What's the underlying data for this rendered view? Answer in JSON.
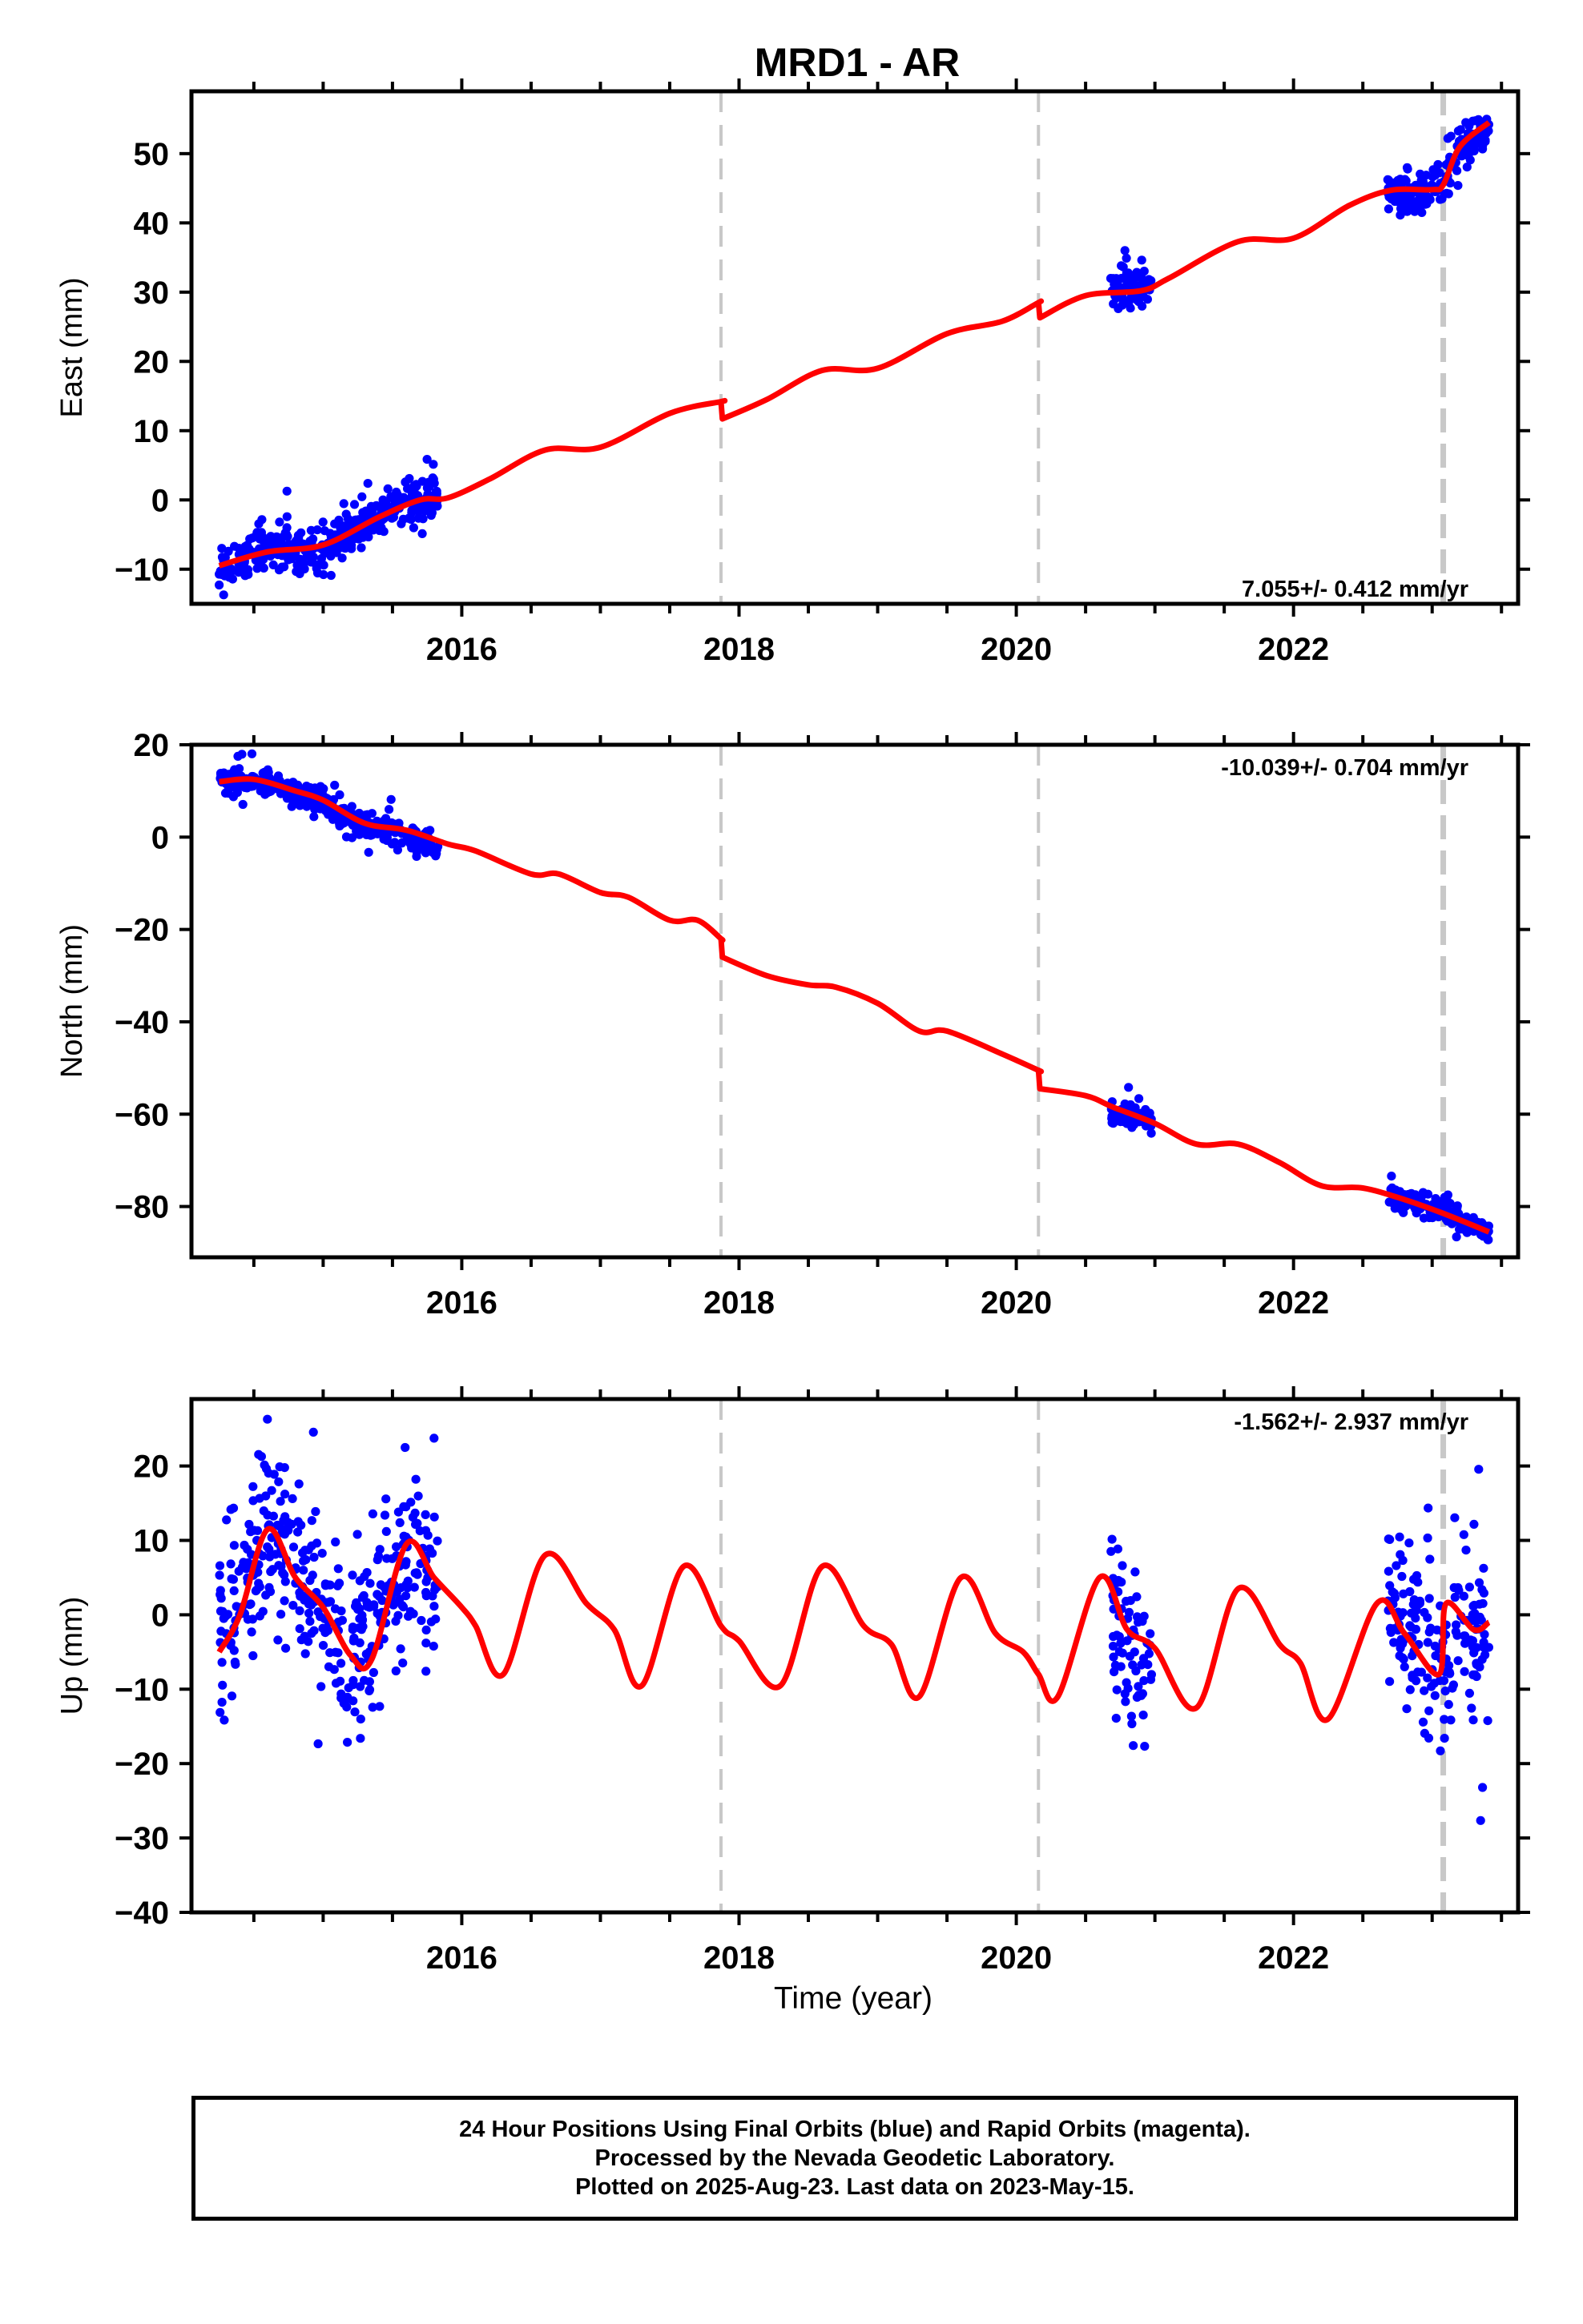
{
  "title": "MRD1 - AR",
  "x_tick_labels": [
    "2016",
    "2018",
    "2020",
    "2022"
  ],
  "xlabel": "Time (year)",
  "colors": {
    "data": "#0000ff",
    "model": "#ff0000",
    "breaks": "#c8c8c8",
    "frame": "#000000"
  },
  "footer": {
    "line1": "24 Hour Positions Using Final Orbits (blue) and Rapid Orbits (magenta).",
    "line2": "Processed by the Nevada Geodetic Laboratory.",
    "line3": "Plotted on 2025-Aug-23. Last data on 2023-May-15."
  },
  "chart_data": [
    {
      "type": "scatter",
      "component": "east",
      "ylabel": "East (mm)",
      "rate_label": "7.055+/- 0.412 mm/yr",
      "xlim": [
        2014.05,
        2023.62
      ],
      "ylim": [
        -15,
        59
      ],
      "yticks": [
        -10,
        0,
        10,
        20,
        30,
        40,
        50
      ],
      "xticks": [
        2016,
        2018,
        2020,
        2022
      ],
      "step_epochs": [
        2017.87,
        2020.16,
        2023.08
      ],
      "data_segments": [
        {
          "start": 2014.25,
          "end": 2015.83,
          "points": [
            [
              2014.25,
              -9.5
            ],
            [
              2014.4,
              -8.5
            ],
            [
              2014.6,
              -7.2
            ],
            [
              2014.8,
              -7.0
            ],
            [
              2015.0,
              -6.5
            ],
            [
              2015.2,
              -4.5
            ],
            [
              2015.4,
              -2.0
            ],
            [
              2015.6,
              0.5
            ],
            [
              2015.83,
              1.0
            ]
          ]
        },
        {
          "start": 2020.68,
          "end": 2020.98,
          "points": [
            [
              2020.68,
              30.0
            ],
            [
              2020.8,
              30.5
            ],
            [
              2020.98,
              31.5
            ]
          ]
        },
        {
          "start": 2022.68,
          "end": 2023.41,
          "points": [
            [
              2022.68,
              44.8
            ],
            [
              2022.9,
              44.2
            ],
            [
              2023.08,
              45.8
            ],
            [
              2023.2,
              50.5
            ],
            [
              2023.41,
              54.0
            ]
          ]
        }
      ],
      "model": [
        [
          2014.25,
          -9.5
        ],
        [
          2014.6,
          -7.5
        ],
        [
          2015.0,
          -6.5
        ],
        [
          2015.4,
          -2.5
        ],
        [
          2015.7,
          0.0
        ],
        [
          2015.9,
          0.3
        ],
        [
          2016.2,
          3.0
        ],
        [
          2016.6,
          7.2
        ],
        [
          2017.0,
          7.6
        ],
        [
          2017.5,
          12.5
        ],
        [
          2017.87,
          14.2
        ],
        [
          2017.88,
          11.7
        ],
        [
          2018.2,
          14.5
        ],
        [
          2018.6,
          18.7
        ],
        [
          2019.0,
          19.0
        ],
        [
          2019.5,
          24.0
        ],
        [
          2019.9,
          25.8
        ],
        [
          2020.16,
          28.5
        ],
        [
          2020.17,
          26.3
        ],
        [
          2020.5,
          29.5
        ],
        [
          2020.9,
          30.2
        ],
        [
          2021.1,
          32.0
        ],
        [
          2021.6,
          37.3
        ],
        [
          2022.0,
          37.8
        ],
        [
          2022.4,
          42.5
        ],
        [
          2022.7,
          44.7
        ],
        [
          2023.0,
          44.8
        ],
        [
          2023.08,
          45.5
        ],
        [
          2023.2,
          51.0
        ],
        [
          2023.41,
          54.5
        ]
      ]
    },
    {
      "type": "scatter",
      "component": "north",
      "ylabel": "North (mm)",
      "rate_label": "-10.039+/- 0.704 mm/yr",
      "xlim": [
        2014.05,
        2023.62
      ],
      "ylim": [
        -91,
        20
      ],
      "yticks": [
        -80,
        -60,
        -40,
        -20,
        0,
        20
      ],
      "xticks": [
        2016,
        2018,
        2020,
        2022
      ],
      "step_epochs": [
        2017.87,
        2020.16,
        2023.08
      ],
      "data_segments": [
        {
          "start": 2014.25,
          "end": 2015.83,
          "points": [
            [
              2014.25,
              12.5
            ],
            [
              2014.5,
              12.0
            ],
            [
              2014.8,
              9.5
            ],
            [
              2015.0,
              7.5
            ],
            [
              2015.2,
              3.5
            ],
            [
              2015.5,
              1.5
            ],
            [
              2015.83,
              -2.5
            ]
          ]
        },
        {
          "start": 2020.68,
          "end": 2020.98,
          "points": [
            [
              2020.68,
              -59.5
            ],
            [
              2020.8,
              -60.5
            ],
            [
              2020.98,
              -61.5
            ]
          ]
        },
        {
          "start": 2022.68,
          "end": 2023.41,
          "points": [
            [
              2022.68,
              -77.5
            ],
            [
              2022.9,
              -79.5
            ],
            [
              2023.08,
              -81.0
            ],
            [
              2023.25,
              -84.0
            ],
            [
              2023.41,
              -85.5
            ]
          ]
        }
      ],
      "model": [
        [
          2014.25,
          12.0
        ],
        [
          2014.5,
          12.5
        ],
        [
          2014.8,
          10.0
        ],
        [
          2015.0,
          8.0
        ],
        [
          2015.3,
          3.0
        ],
        [
          2015.6,
          1.5
        ],
        [
          2015.9,
          -1.5
        ],
        [
          2016.1,
          -3.0
        ],
        [
          2016.5,
          -8.0
        ],
        [
          2016.7,
          -8.0
        ],
        [
          2017.0,
          -12.0
        ],
        [
          2017.2,
          -13.0
        ],
        [
          2017.5,
          -18.0
        ],
        [
          2017.7,
          -18.0
        ],
        [
          2017.87,
          -22.0
        ],
        [
          2017.88,
          -26.0
        ],
        [
          2018.2,
          -30.0
        ],
        [
          2018.5,
          -32.0
        ],
        [
          2018.7,
          -32.5
        ],
        [
          2019.0,
          -36.0
        ],
        [
          2019.3,
          -42.0
        ],
        [
          2019.5,
          -42.0
        ],
        [
          2019.9,
          -47.0
        ],
        [
          2020.16,
          -50.5
        ],
        [
          2020.17,
          -54.5
        ],
        [
          2020.5,
          -56.0
        ],
        [
          2020.7,
          -58.5
        ],
        [
          2021.0,
          -62.0
        ],
        [
          2021.3,
          -66.5
        ],
        [
          2021.6,
          -66.5
        ],
        [
          2021.9,
          -70.5
        ],
        [
          2022.2,
          -75.5
        ],
        [
          2022.5,
          -76.0
        ],
        [
          2022.8,
          -78.5
        ],
        [
          2023.08,
          -81.5
        ],
        [
          2023.41,
          -85.5
        ]
      ]
    },
    {
      "type": "scatter",
      "component": "up",
      "ylabel": "Up (mm)",
      "rate_label": "-1.562+/- 2.937 mm/yr",
      "xlim": [
        2014.05,
        2023.62
      ],
      "ylim": [
        -40,
        29
      ],
      "yticks": [
        -40,
        -30,
        -20,
        -10,
        0,
        10,
        20
      ],
      "xticks": [
        2016,
        2018,
        2020,
        2022
      ],
      "step_epochs": [
        2017.87,
        2020.16,
        2023.08
      ],
      "data_segments": [
        {
          "start": 2014.25,
          "end": 2015.83,
          "points": [
            [
              2014.25,
              -4.0
            ],
            [
              2014.6,
              12.0
            ],
            [
              2014.9,
              3.0
            ],
            [
              2015.2,
              -7.0
            ],
            [
              2015.5,
              5.0
            ],
            [
              2015.7,
              8.0
            ],
            [
              2015.83,
              3.0
            ]
          ]
        },
        {
          "start": 2020.68,
          "end": 2020.98,
          "points": [
            [
              2020.68,
              2.0
            ],
            [
              2020.8,
              -4.0
            ],
            [
              2020.98,
              -10.0
            ]
          ]
        },
        {
          "start": 2022.68,
          "end": 2023.41,
          "points": [
            [
              2022.68,
              1.0
            ],
            [
              2022.9,
              -3.0
            ],
            [
              2023.08,
              -6.0
            ],
            [
              2023.25,
              -2.0
            ],
            [
              2023.41,
              -1.0
            ]
          ]
        }
      ],
      "model": [
        [
          2014.25,
          -5.0
        ],
        [
          2014.4,
          0.0
        ],
        [
          2014.6,
          11.5
        ],
        [
          2014.8,
          5.0
        ],
        [
          2015.0,
          1.0
        ],
        [
          2015.2,
          -5.5
        ],
        [
          2015.35,
          -6.0
        ],
        [
          2015.6,
          9.5
        ],
        [
          2015.8,
          5.0
        ],
        [
          2016.0,
          1.0
        ],
        [
          2016.1,
          -1.5
        ],
        [
          2016.3,
          -8.0
        ],
        [
          2016.6,
          8.0
        ],
        [
          2016.9,
          1.5
        ],
        [
          2017.1,
          -2.0
        ],
        [
          2017.3,
          -9.5
        ],
        [
          2017.6,
          6.5
        ],
        [
          2017.87,
          -1.5
        ],
        [
          2018.0,
          -3.5
        ],
        [
          2018.3,
          -9.5
        ],
        [
          2018.6,
          6.5
        ],
        [
          2018.9,
          -1.5
        ],
        [
          2019.1,
          -4.0
        ],
        [
          2019.3,
          -11.0
        ],
        [
          2019.6,
          5.0
        ],
        [
          2019.85,
          -2.5
        ],
        [
          2020.05,
          -5.0
        ],
        [
          2020.16,
          -8.0
        ],
        [
          2020.3,
          -11.0
        ],
        [
          2020.6,
          5.0
        ],
        [
          2020.8,
          -2.0
        ],
        [
          2021.0,
          -4.5
        ],
        [
          2021.3,
          -12.5
        ],
        [
          2021.6,
          3.5
        ],
        [
          2021.9,
          -4.0
        ],
        [
          2022.05,
          -6.5
        ],
        [
          2022.25,
          -14.0
        ],
        [
          2022.6,
          1.5
        ],
        [
          2022.8,
          -2.5
        ],
        [
          2023.05,
          -8.0
        ],
        [
          2023.1,
          1.5
        ],
        [
          2023.3,
          -2.0
        ],
        [
          2023.41,
          -1.0
        ]
      ]
    }
  ]
}
